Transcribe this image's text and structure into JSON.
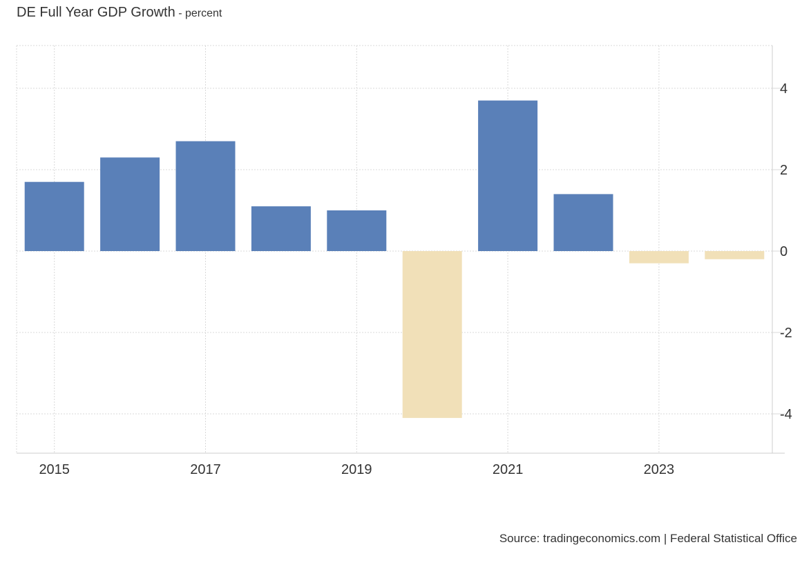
{
  "chart_data": {
    "type": "bar",
    "title": "DE Full Year GDP Growth",
    "title_separator": "-",
    "unit": "percent",
    "categories": [
      "2015",
      "2016",
      "2017",
      "2018",
      "2019",
      "2020",
      "2021",
      "2022",
      "2023",
      "2024"
    ],
    "values": [
      1.7,
      2.3,
      2.7,
      1.1,
      1.0,
      -4.1,
      3.7,
      1.4,
      -0.3,
      -0.2
    ],
    "x_tick_labels": [
      "2015",
      "2017",
      "2019",
      "2021",
      "2023"
    ],
    "y_tick_labels": [
      "4",
      "2",
      "0",
      "-2",
      "-4"
    ],
    "y_ticks": [
      4,
      2,
      0,
      -2,
      -4
    ],
    "ylim": [
      -5,
      5
    ],
    "y_axis_side": "right",
    "grid": true,
    "colors": {
      "positive": "#5a80b8",
      "negative": "#f1e0b8",
      "grid": "#d8d8d8",
      "axis": "#cccccc"
    },
    "xlabel": "",
    "ylabel": ""
  },
  "footer": {
    "source": "Source: tradingeconomics.com | Federal Statistical Office"
  }
}
